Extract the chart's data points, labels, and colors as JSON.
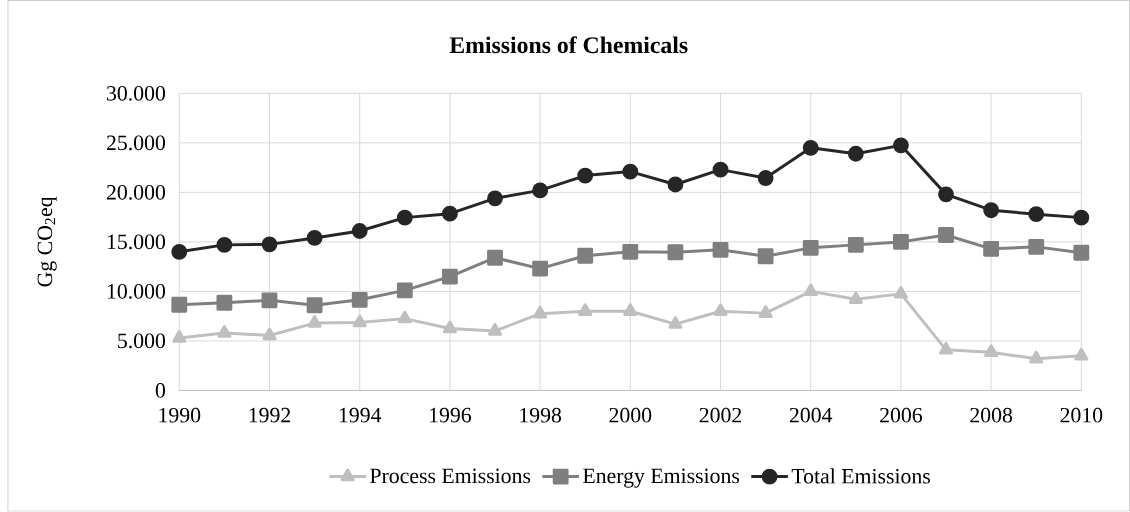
{
  "chart_data": {
    "type": "line",
    "title": "Emissions of Chemicals",
    "ylabel": "Gg CO$_{2}$eq",
    "x": [
      1990,
      1991,
      1992,
      1993,
      1994,
      1995,
      1996,
      1997,
      1998,
      1999,
      2000,
      2001,
      2002,
      2003,
      2004,
      2005,
      2006,
      2007,
      2008,
      2009,
      2010
    ],
    "series": [
      {
        "name": "Process Emissions",
        "color": "#bfbfbf",
        "marker": "triangle",
        "values": [
          5300,
          5800,
          5550,
          6800,
          6850,
          7250,
          6250,
          6000,
          7750,
          8000,
          8000,
          6700,
          8000,
          7800,
          10000,
          9200,
          9750,
          4100,
          3850,
          3200,
          3500
        ]
      },
      {
        "name": "Energy Emissions",
        "color": "#7f7f7f",
        "marker": "square",
        "values": [
          8650,
          8850,
          9100,
          8600,
          9150,
          10100,
          11500,
          13400,
          12300,
          13600,
          14000,
          13950,
          14200,
          13550,
          14400,
          14700,
          15000,
          15700,
          14300,
          14500,
          13900
        ]
      },
      {
        "name": "Total Emissions",
        "color": "#262626",
        "marker": "circle",
        "values": [
          14000,
          14700,
          14750,
          15400,
          16100,
          17450,
          17850,
          19400,
          20200,
          21700,
          22100,
          20800,
          22300,
          21450,
          24500,
          23900,
          24750,
          19800,
          18200,
          17800,
          17450
        ]
      }
    ],
    "xlim": [
      1990,
      2010
    ],
    "xticks": [
      1990,
      1992,
      1994,
      1996,
      1998,
      2000,
      2002,
      2004,
      2006,
      2008,
      2010
    ],
    "ylim": [
      0,
      30000
    ],
    "yticks": [
      {
        "value": 0,
        "label": "0"
      },
      {
        "value": 5000,
        "label": "5.000"
      },
      {
        "value": 10000,
        "label": "10.000"
      },
      {
        "value": 15000,
        "label": "15.000"
      },
      {
        "value": 20000,
        "label": "20.000"
      },
      {
        "value": 25000,
        "label": "25.000"
      },
      {
        "value": 30000,
        "label": "30.000"
      }
    ],
    "grid": true,
    "legend": "bottom",
    "line_style": "solid"
  }
}
